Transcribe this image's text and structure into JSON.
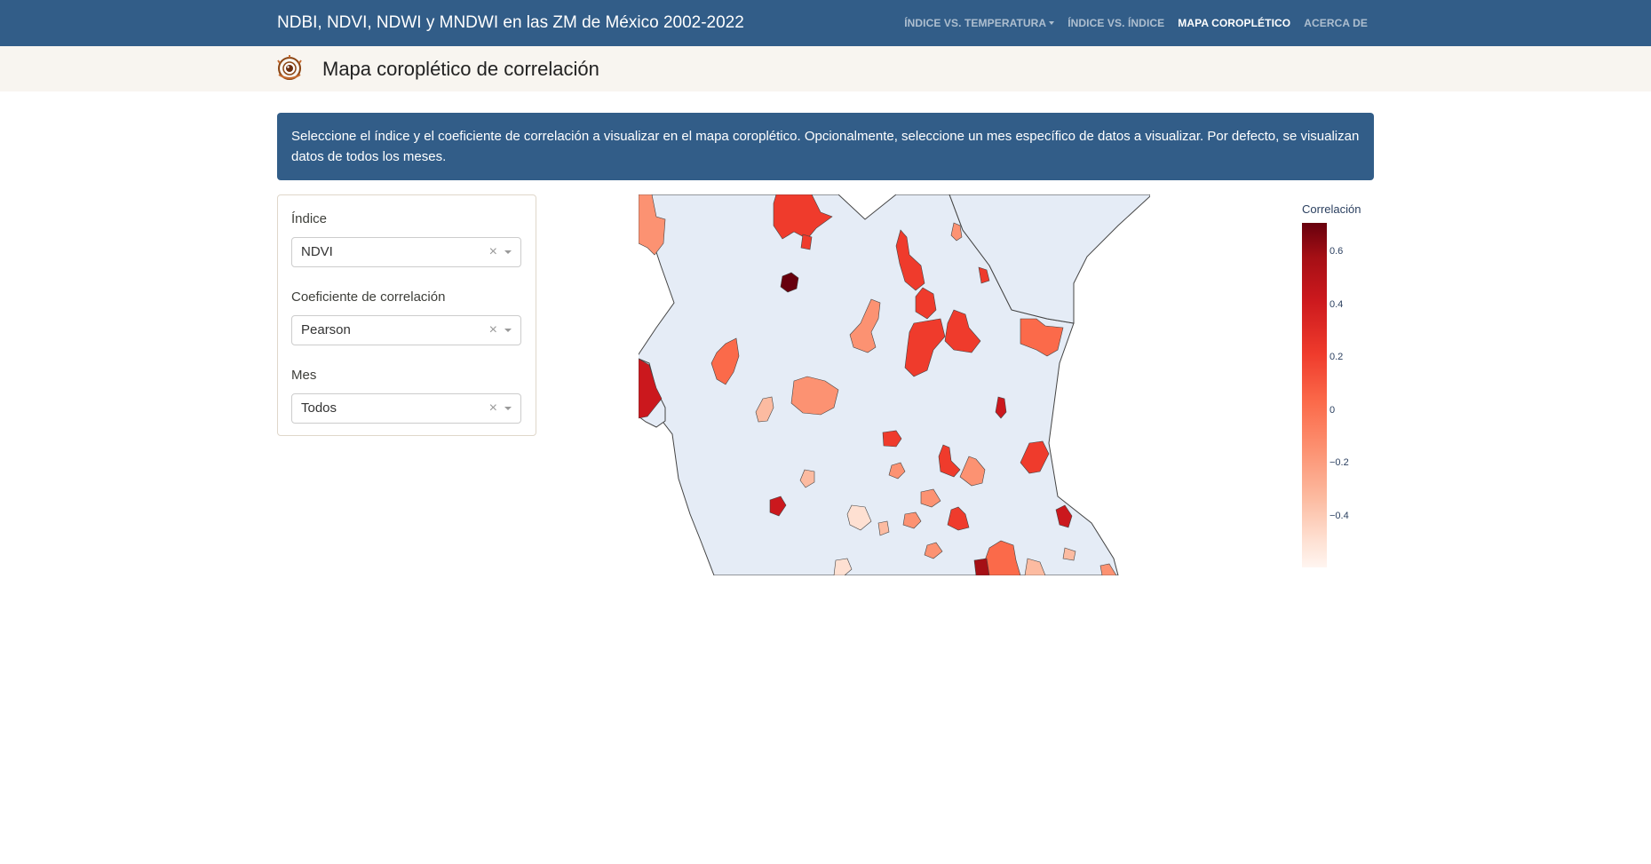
{
  "navbar": {
    "brand": "NDBI, NDVI, NDWI y MNDWI en las ZM de México 2002-2022",
    "links": [
      "Índice vs. temperatura",
      "Índice vs. índice",
      "Mapa coroplético",
      "Acerca de"
    ],
    "active": "Mapa coroplético"
  },
  "header": {
    "title": "Mapa coroplético de correlación",
    "logo_icon": "eye-logo-icon"
  },
  "alert": {
    "text": "Seleccione el índice y el coeficiente de correlación a visualizar en el mapa coroplético. Opcionalmente, seleccione un mes específico de datos a visualizar. Por defecto, se visualizan datos de todos los meses."
  },
  "controls": {
    "index": {
      "label": "Índice",
      "value": "NDVI"
    },
    "coef": {
      "label": "Coeficiente de correlación",
      "value": "Pearson"
    },
    "month": {
      "label": "Mes",
      "value": "Todos"
    },
    "clear_symbol": "×"
  },
  "map": {
    "land_color": "#e5ecf6",
    "border_color": "#444444",
    "colorscale": "Reds"
  },
  "colorbar": {
    "title": "Correlación",
    "ticks": [
      "0.6",
      "0.4",
      "0.2",
      "0",
      "−0.2",
      "−0.4"
    ]
  },
  "colors": {
    "primary": "#325d88",
    "header_bg": "#f8f5f0"
  }
}
